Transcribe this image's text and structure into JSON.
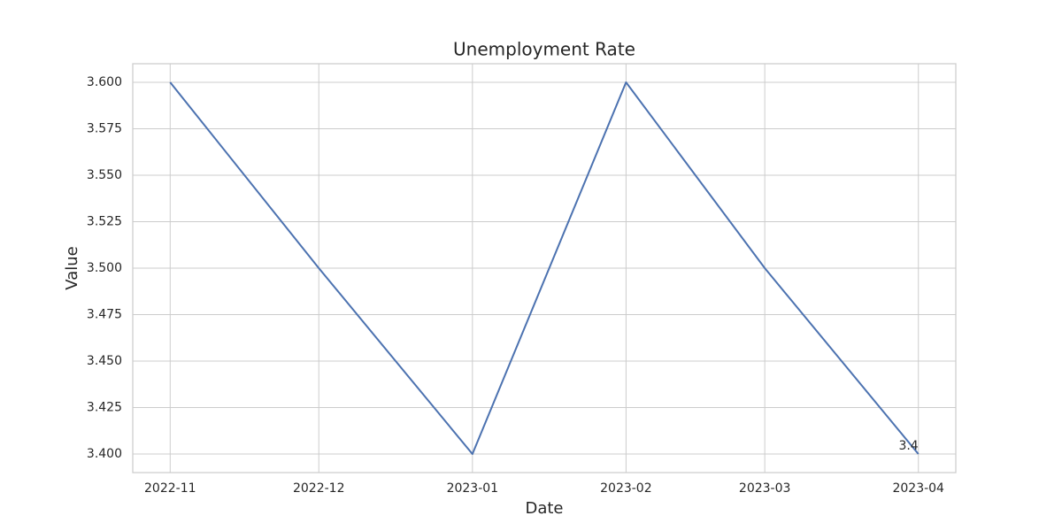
{
  "chart_data": {
    "type": "line",
    "title": "Unemployment Rate",
    "x_label": "Date",
    "y_label": "Value",
    "x": [
      "2022-11",
      "2022-12",
      "2023-01",
      "2023-02",
      "2023-03",
      "2023-04"
    ],
    "series": [
      {
        "name": "Unemployment Rate",
        "color": "#4c72b0",
        "values": [
          3.6,
          3.5,
          3.4,
          3.6,
          3.5,
          3.4
        ]
      }
    ],
    "ylim": [
      3.39,
      3.61
    ],
    "yticks": [
      {
        "value": 3.4,
        "label": "3.400"
      },
      {
        "value": 3.425,
        "label": "3.425"
      },
      {
        "value": 3.45,
        "label": "3.450"
      },
      {
        "value": 3.475,
        "label": "3.475"
      },
      {
        "value": 3.5,
        "label": "3.500"
      },
      {
        "value": 3.525,
        "label": "3.525"
      },
      {
        "value": 3.55,
        "label": "3.550"
      },
      {
        "value": 3.575,
        "label": "3.575"
      },
      {
        "value": 3.6,
        "label": "3.600"
      }
    ],
    "grid": true,
    "label_last": true,
    "legend": false
  }
}
